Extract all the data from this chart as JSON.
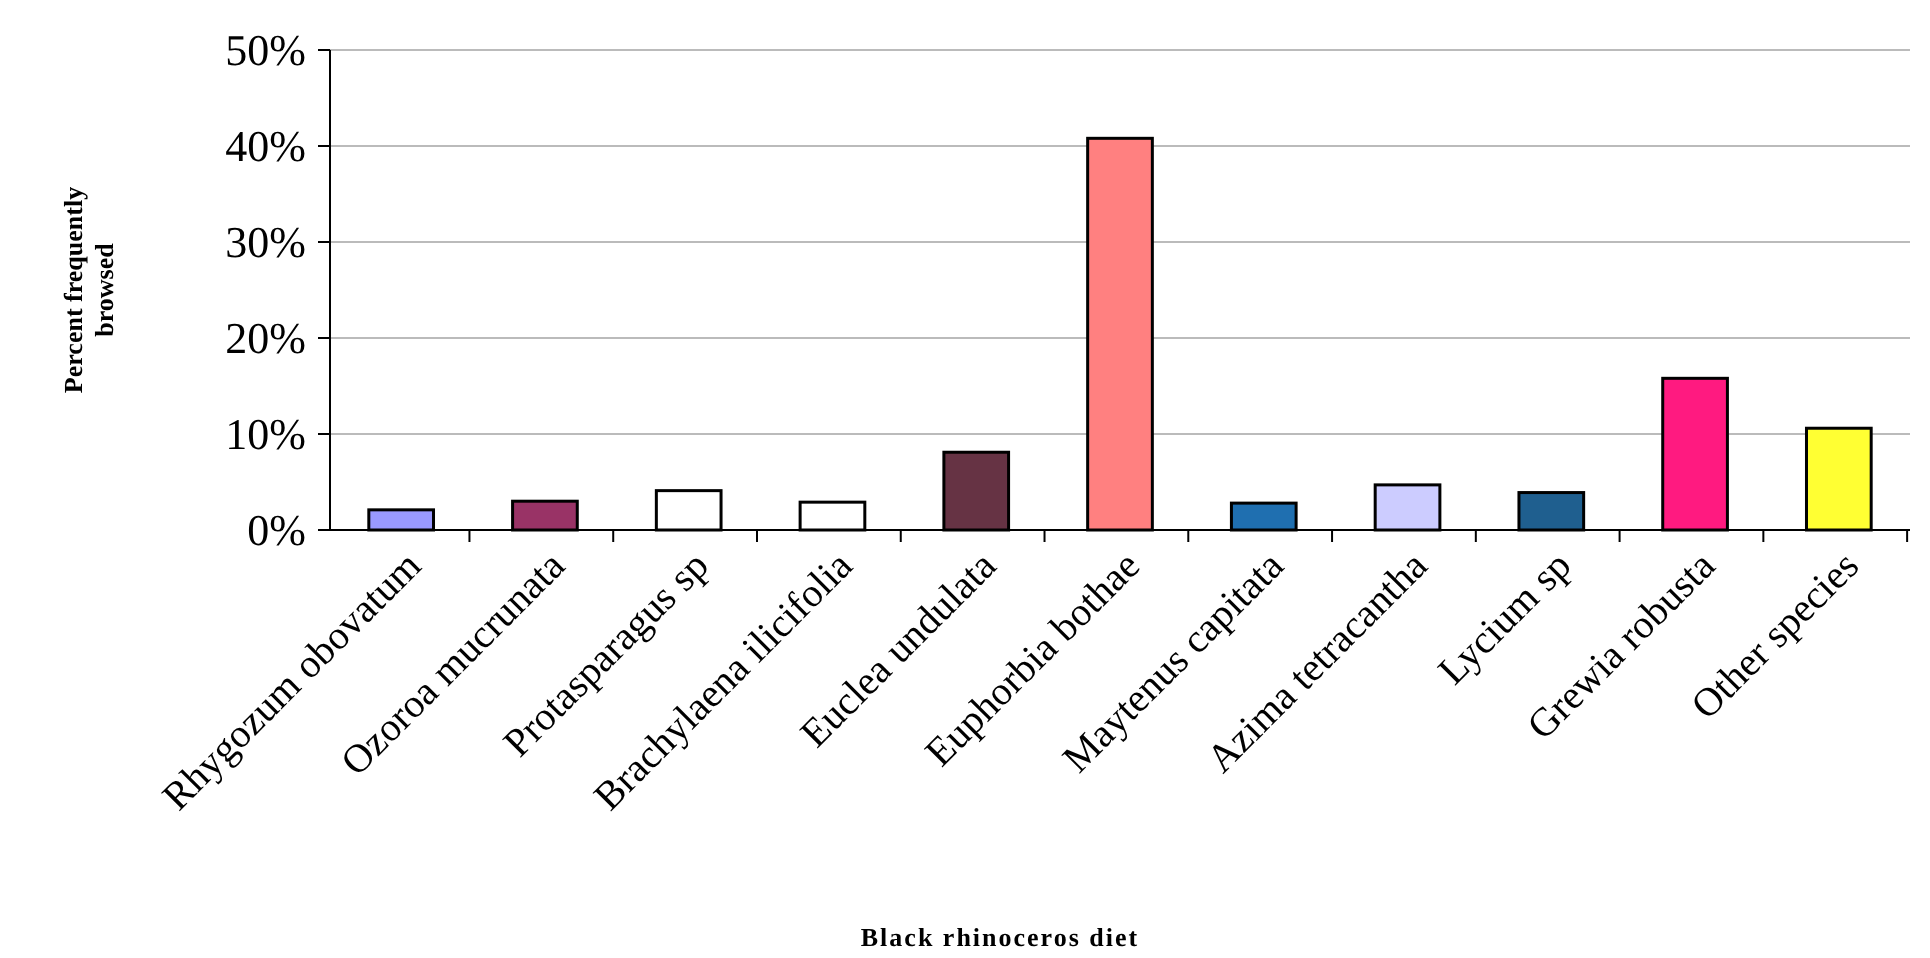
{
  "chart_data": {
    "type": "bar",
    "xlabel": "Black rhinoceros diet",
    "ylabel": "Percent frequently browsed",
    "categories": [
      "Rhygozum obovatum",
      "Ozoroa mucrunata",
      "Protasparagus sp",
      "Brachylaena ilicifolia",
      "Euclea undulata",
      "Euphorbia bothae",
      "Maytenus capitata",
      "Azima tetracantha",
      "Lycium sp",
      "Grewia robusta",
      "Other species"
    ],
    "values": [
      2.1,
      3.0,
      4.1,
      2.9,
      8.1,
      40.8,
      2.8,
      4.7,
      3.9,
      15.8,
      10.6
    ],
    "colors": [
      "#9999ff",
      "#993366",
      "#ffffff",
      "#ffffff",
      "#663344",
      "#ff8080",
      "#1f6fb0",
      "#ccccff",
      "#1f5f8f",
      "#ff1a80",
      "#ffff33"
    ],
    "ylim": [
      0,
      50
    ],
    "yticks": [
      {
        "value": 0,
        "label": "0%"
      },
      {
        "value": 10,
        "label": "10%"
      },
      {
        "value": 20,
        "label": "20%"
      },
      {
        "value": 30,
        "label": "30%"
      },
      {
        "value": 40,
        "label": "40%"
      },
      {
        "value": 50,
        "label": "50%"
      }
    ],
    "grid": "y"
  }
}
